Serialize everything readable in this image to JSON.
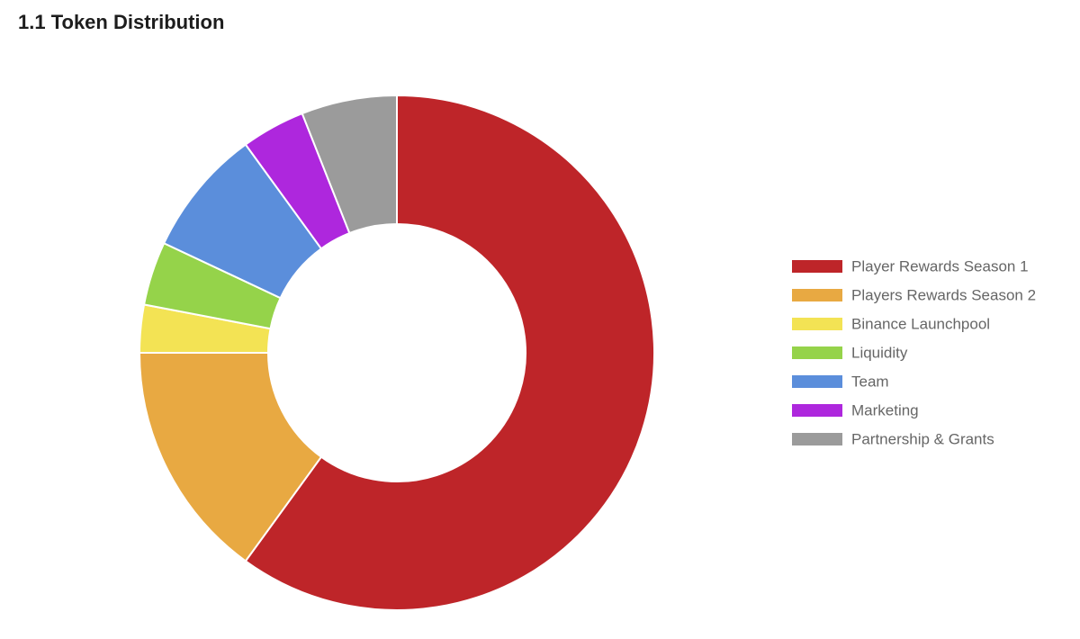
{
  "chart_data": {
    "type": "donut",
    "title": "1.1 Token Distribution",
    "categories": [
      "Player Rewards Season 1",
      "Players Rewards Season 2",
      "Binance Launchpool",
      "Liquidity",
      "Team",
      "Marketing",
      "Partnership & Grants"
    ],
    "values": [
      60,
      15,
      3,
      4,
      8,
      4,
      6
    ],
    "colors": [
      "#be2529",
      "#e8a942",
      "#f3e354",
      "#95d34a",
      "#5b8edb",
      "#ae27dd",
      "#9b9b9b"
    ],
    "legend": "right"
  }
}
